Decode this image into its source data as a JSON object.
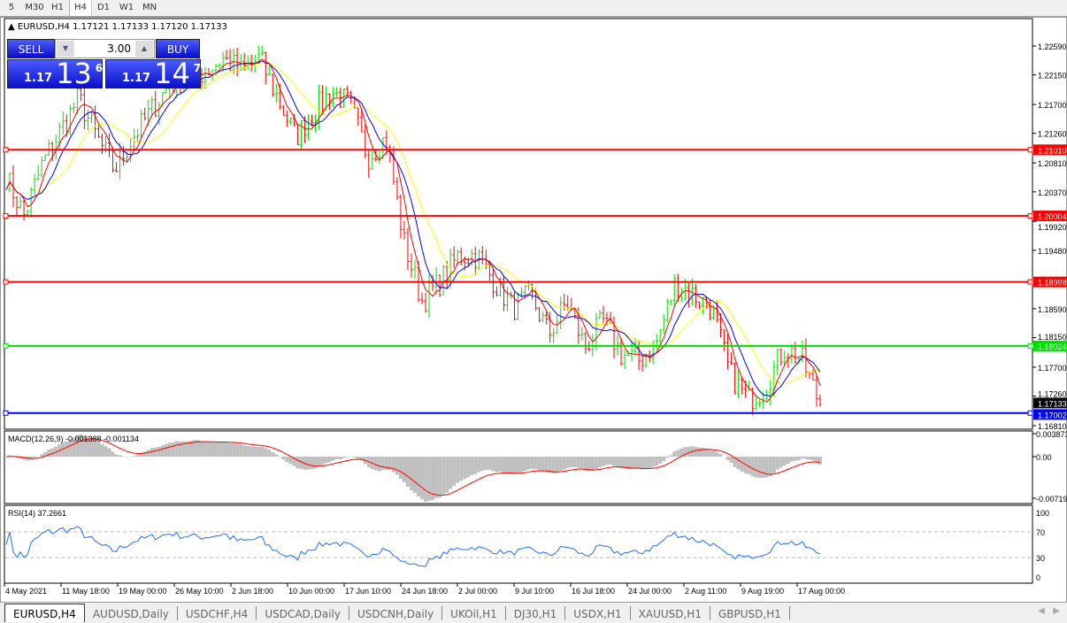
{
  "timeframes": [
    "5",
    "M30",
    "H1",
    "H4",
    "D1",
    "W1",
    "MN"
  ],
  "active_timeframe": "H4",
  "chart": {
    "title": "EURUSD,H4  1.17121 1.17133 1.17120 1.17133",
    "symbol": "EURUSD",
    "period": "H4"
  },
  "trade_panel": {
    "sell_label": "SELL",
    "buy_label": "BUY",
    "volume": "3.00",
    "sell_small": "1.17",
    "sell_big": "13",
    "sell_pip": "6",
    "buy_small": "1.17",
    "buy_big": "14",
    "buy_pip": "7"
  },
  "price_axis": {
    "ticks": [
      "1.22590",
      "1.22150",
      "1.21700",
      "1.21260",
      "1.20810",
      "1.20370",
      "1.19920",
      "1.19480",
      "1.18590",
      "1.18150",
      "1.17700",
      "1.17260",
      "1.16810"
    ]
  },
  "levels": [
    {
      "price": "1.21010",
      "color": "#ff0000"
    },
    {
      "price": "1.20004",
      "color": "#ff0000"
    },
    {
      "price": "1.18998",
      "color": "#ff0000"
    },
    {
      "price": "1.18024",
      "color": "#00e000"
    },
    {
      "price": "1.17002",
      "color": "#0000ff"
    }
  ],
  "current_price": "1.17133",
  "macd": {
    "label": "MACD(12,26,9) -0.001388 -0.001134",
    "ticks": [
      "0.003873",
      "0.00",
      "-0.00719"
    ]
  },
  "rsi": {
    "label": "RSI(14) 37.2661",
    "ticks": [
      "100",
      "70",
      "30",
      "0"
    ]
  },
  "time_axis": [
    "4 May 2021",
    "11 May 18:00",
    "19 May 00:00",
    "26 May 10:00",
    "2 Jun 18:00",
    "10 Jun 00:00",
    "17 Jun 10:00",
    "24 Jun 18:00",
    "2 Jul 00:00",
    "9 Jul 10:00",
    "16 Jul 18:00",
    "24 Jul 00:00",
    "2 Aug 11:00",
    "9 Aug 19:00",
    "17 Aug 00:00"
  ],
  "tabs": [
    "EURUSD,H4",
    "AUDUSD,Daily",
    "USDCHF,H4",
    "USDCAD,Daily",
    "USDCNH,Daily",
    "UKOil,H1",
    "DJ30,H1",
    "USDX,H1",
    "XAUUSD,H1",
    "GBPUSD,H1"
  ],
  "chart_data": {
    "type": "bar",
    "series_close_approx": [
      1.206,
      1.2,
      1.208,
      1.213,
      1.218,
      1.212,
      1.207,
      1.212,
      1.216,
      1.22,
      1.221,
      1.222,
      1.224,
      1.222,
      1.224,
      1.218,
      1.212,
      1.216,
      1.219,
      1.217,
      1.209,
      1.212,
      1.196,
      1.187,
      1.19,
      1.194,
      1.194,
      1.19,
      1.186,
      1.188,
      1.182,
      1.187,
      1.18,
      1.184,
      1.179,
      1.178,
      1.181,
      1.19,
      1.188,
      1.186,
      1.176,
      1.172,
      1.174,
      1.18,
      1.178,
      1.1713
    ],
    "colors": {
      "up": "#00e000",
      "down": "#ff0000",
      "ma_fast": "#ff0000",
      "ma_mid": "#0000ff",
      "ma_slow": "#ffff00",
      "macd_hist": "#c0c0c0",
      "macd_signal": "#ff0000",
      "rsi": "#1e6fff"
    }
  }
}
